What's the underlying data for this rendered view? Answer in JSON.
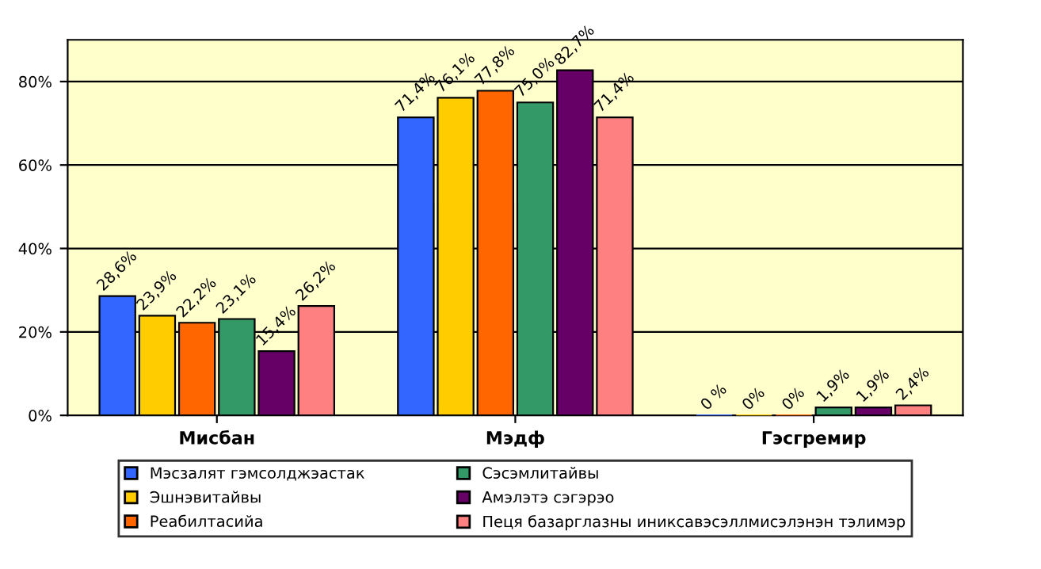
{
  "chart_data": {
    "type": "bar",
    "categories": [
      "Мисбан",
      "Мэдф",
      "Гэсгремир"
    ],
    "series": [
      {
        "name": "Мэсзалят гэмсолджэастак",
        "color": "#3366ff",
        "values": [
          28.6,
          71.4,
          0
        ],
        "value_labels": [
          "28,6%",
          "71,4%",
          "0 %"
        ]
      },
      {
        "name": "Эшнэвитайвы",
        "color": "#ffcc00",
        "values": [
          23.9,
          76.1,
          0
        ],
        "value_labels": [
          "23,9%",
          "76,1%",
          "0%"
        ]
      },
      {
        "name": "Реабилтасийа",
        "color": "#ff6600",
        "values": [
          22.2,
          77.8,
          0
        ],
        "value_labels": [
          "22,2%",
          "77,8%",
          "0%"
        ]
      },
      {
        "name": "Сэсэмлитайвы",
        "color": "#339966",
        "values": [
          23.1,
          75.0,
          1.9
        ],
        "value_labels": [
          "23,1%",
          "75,0%",
          "1,9%"
        ]
      },
      {
        "name": "Амэлэтэ сэгэрэо",
        "color": "#660066",
        "values": [
          15.4,
          82.7,
          1.9
        ],
        "value_labels": [
          "15,4%",
          "82,7%",
          "1,9%"
        ]
      },
      {
        "name": "Пеця базарглазны иниксавэсэллмисэлэнэн тэлимэр",
        "color": "#ff8080",
        "values": [
          26.2,
          71.4,
          2.4
        ],
        "value_labels": [
          "26,2%",
          "71,4%",
          "2,4%"
        ]
      }
    ],
    "ylim": [
      0,
      90
    ],
    "yticks": [
      {
        "value": 0,
        "label": "0%"
      },
      {
        "value": 20,
        "label": "20%"
      },
      {
        "value": 40,
        "label": "40%"
      },
      {
        "value": 60,
        "label": "60%"
      },
      {
        "value": 80,
        "label": "80%"
      }
    ],
    "grid": "y",
    "legend": "bottom"
  }
}
